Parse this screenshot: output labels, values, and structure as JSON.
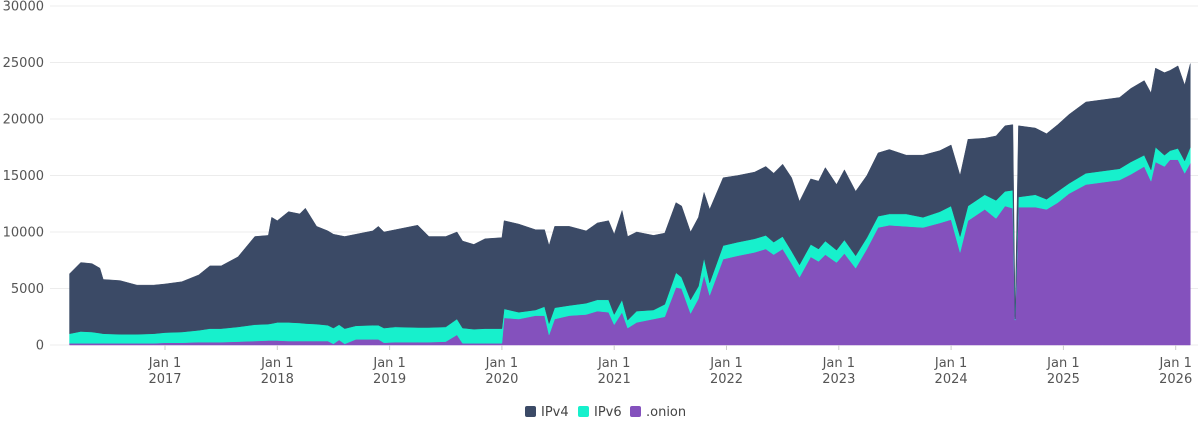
{
  "chart_data": {
    "type": "area",
    "stacked": true,
    "title": "",
    "xlabel": "",
    "ylabel": "",
    "ylim": [
      0,
      30000
    ],
    "yticks": [
      "0",
      "5000",
      "10000",
      "15000",
      "20000",
      "25000",
      "30000"
    ],
    "ytick_values": [
      0,
      5000,
      10000,
      15000,
      20000,
      25000,
      30000
    ],
    "xticks": [
      {
        "year": 2017,
        "line1": "Jan 1",
        "line2": "2017"
      },
      {
        "year": 2018,
        "line1": "Jan 1",
        "line2": "2018"
      },
      {
        "year": 2019,
        "line1": "Jan 1",
        "line2": "2019"
      },
      {
        "year": 2020,
        "line1": "Jan 1",
        "line2": "2020"
      },
      {
        "year": 2021,
        "line1": "Jan 1",
        "line2": "2021"
      },
      {
        "year": 2022,
        "line1": "Jan 1",
        "line2": "2022"
      },
      {
        "year": 2023,
        "line1": "Jan 1",
        "line2": "2023"
      },
      {
        "year": 2024,
        "line1": "Jan 1",
        "line2": "2024"
      },
      {
        "year": 2025,
        "line1": "Jan 1",
        "line2": "2025"
      },
      {
        "year": 2026,
        "line1": "Jan 1",
        "line2": "2026"
      }
    ],
    "grid": true,
    "legend_position": "bottom-center",
    "x": [
      2016.15,
      2016.25,
      2016.35,
      2016.42,
      2016.45,
      2016.6,
      2016.75,
      2016.9,
      2017.0,
      2017.15,
      2017.3,
      2017.4,
      2017.5,
      2017.65,
      2017.8,
      2017.92,
      2017.95,
      2018.0,
      2018.1,
      2018.2,
      2018.25,
      2018.35,
      2018.45,
      2018.5,
      2018.55,
      2018.6,
      2018.7,
      2018.85,
      2018.9,
      2018.95,
      2019.05,
      2019.25,
      2019.35,
      2019.5,
      2019.6,
      2019.65,
      2019.75,
      2019.85,
      2020.0,
      2020.02,
      2020.15,
      2020.3,
      2020.38,
      2020.42,
      2020.47,
      2020.6,
      2020.75,
      2020.85,
      2020.95,
      2021.0,
      2021.07,
      2021.12,
      2021.2,
      2021.35,
      2021.45,
      2021.55,
      2021.6,
      2021.68,
      2021.75,
      2021.8,
      2021.85,
      2021.97,
      2022.1,
      2022.25,
      2022.35,
      2022.42,
      2022.5,
      2022.58,
      2022.65,
      2022.75,
      2022.82,
      2022.88,
      2022.98,
      2023.05,
      2023.15,
      2023.25,
      2023.35,
      2023.45,
      2023.6,
      2023.75,
      2023.9,
      2024.0,
      2024.08,
      2024.15,
      2024.3,
      2024.4,
      2024.48,
      2024.55,
      2024.57,
      2024.6,
      2024.75,
      2024.85,
      2024.95,
      2025.05,
      2025.2,
      2025.35,
      2025.5,
      2025.6,
      2025.72,
      2025.78,
      2025.82,
      2025.9,
      2025.95,
      2026.02,
      2026.08,
      2026.13
    ],
    "series": [
      {
        "name": ".onion",
        "color": "#8451bd",
        "values": [
          150,
          150,
          150,
          150,
          150,
          150,
          150,
          150,
          200,
          200,
          250,
          250,
          250,
          300,
          350,
          400,
          400,
          400,
          350,
          350,
          350,
          350,
          350,
          100,
          450,
          100,
          500,
          500,
          500,
          200,
          250,
          250,
          250,
          300,
          900,
          150,
          150,
          150,
          150,
          2400,
          2300,
          2600,
          2600,
          900,
          2300,
          2600,
          2700,
          3000,
          2900,
          1800,
          2900,
          1500,
          2000,
          2300,
          2500,
          5100,
          5000,
          2800,
          4100,
          6200,
          4400,
          7600,
          7900,
          8200,
          8500,
          8000,
          8500,
          7200,
          6000,
          7800,
          7400,
          8000,
          7300,
          8100,
          6800,
          8500,
          10400,
          10600,
          10500,
          10400,
          10800,
          11100,
          8200,
          11000,
          12000,
          11200,
          12300,
          12100,
          2200,
          12200,
          12200,
          12000,
          12600,
          13400,
          14200,
          14400,
          14600,
          15100,
          15800,
          14500,
          16200,
          15800,
          16400,
          16400,
          15200,
          16100
        ]
      },
      {
        "name": "IPv6",
        "color": "#17f0cc",
        "values": [
          850,
          1050,
          1000,
          900,
          850,
          800,
          800,
          850,
          900,
          950,
          1050,
          1200,
          1200,
          1300,
          1450,
          1450,
          1500,
          1600,
          1650,
          1600,
          1550,
          1500,
          1400,
          1400,
          1350,
          1350,
          1200,
          1250,
          1250,
          1300,
          1350,
          1300,
          1300,
          1300,
          1400,
          1350,
          1250,
          1300,
          1300,
          800,
          600,
          500,
          800,
          1000,
          1000,
          900,
          1000,
          1000,
          1100,
          900,
          1100,
          700,
          1000,
          800,
          1100,
          1300,
          1000,
          1200,
          1100,
          1500,
          1100,
          1200,
          1200,
          1200,
          1200,
          1100,
          1100,
          1100,
          1100,
          1100,
          1100,
          1200,
          1100,
          1200,
          1100,
          1000,
          1000,
          1000,
          1100,
          900,
          1000,
          1200,
          1400,
          1300,
          1300,
          1600,
          1300,
          1600,
          100,
          900,
          1100,
          900,
          1000,
          900,
          1000,
          1000,
          1000,
          1100,
          1000,
          1000,
          1300,
          1000,
          800,
          1000,
          1100,
          1400
        ]
      },
      {
        "name": "IPv4",
        "color": "#3b4a66",
        "values": [
          5300,
          6100,
          6050,
          5750,
          4800,
          4750,
          4350,
          4300,
          4300,
          4450,
          4900,
          5550,
          5550,
          6200,
          7800,
          7850,
          9400,
          9000,
          9800,
          9650,
          10200,
          8650,
          8350,
          8300,
          7900,
          8150,
          8100,
          8350,
          8750,
          8500,
          8600,
          9050,
          8050,
          8000,
          7700,
          7700,
          7500,
          7950,
          8050,
          7800,
          7800,
          7100,
          6800,
          6900,
          7200,
          7000,
          6400,
          6800,
          7000,
          7100,
          7900,
          7400,
          7000,
          6600,
          6300,
          6200,
          6300,
          6000,
          6100,
          5800,
          6500,
          6000,
          5900,
          5900,
          6100,
          6100,
          6400,
          6500,
          5600,
          5800,
          6000,
          6500,
          5800,
          6200,
          5700,
          5500,
          5600,
          5700,
          5200,
          5500,
          5400,
          5400,
          5400,
          5900,
          5000,
          5700,
          5800,
          5800,
          200,
          6300,
          5900,
          5800,
          5900,
          6100,
          6300,
          6300,
          6300,
          6500,
          6600,
          6800,
          7000,
          7300,
          7100,
          7300,
          6700,
          7400
        ]
      }
    ],
    "legend": [
      {
        "name": "IPv4",
        "color": "#3b4a66"
      },
      {
        "name": "IPv6",
        "color": "#17f0cc"
      },
      {
        "name": ".onion",
        "color": "#8451bd"
      }
    ]
  }
}
